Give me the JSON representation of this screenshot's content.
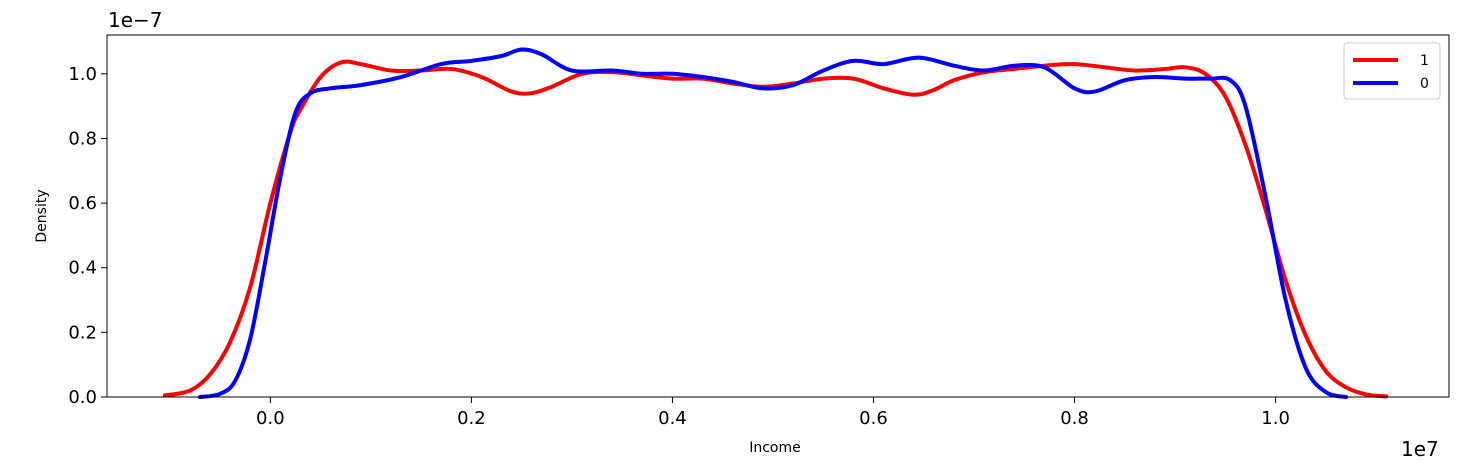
{
  "chart_data": {
    "type": "line",
    "title": "",
    "xlabel": "Income",
    "ylabel": "Density",
    "x_offset_label": "1e7",
    "y_offset_label": "1e−7",
    "xlim": [
      -0.1625,
      1.1725
    ],
    "ylim": [
      0,
      1.12
    ],
    "xticks": [
      0.0,
      0.2,
      0.4,
      0.6,
      0.8,
      1.0
    ],
    "xtick_labels": [
      "0.0",
      "0.2",
      "0.4",
      "0.6",
      "0.8",
      "1.0"
    ],
    "yticks": [
      0.0,
      0.2,
      0.4,
      0.6,
      0.8,
      1.0
    ],
    "ytick_labels": [
      "0.0",
      "0.2",
      "0.4",
      "0.6",
      "0.8",
      "1.0"
    ],
    "grid": false,
    "legend": "top-right",
    "series": [
      {
        "name": "1",
        "color": "#ff0000",
        "x": [
          -0.105,
          -0.08,
          -0.06,
          -0.04,
          -0.02,
          0.0,
          0.02,
          0.03,
          0.05,
          0.07,
          0.09,
          0.12,
          0.15,
          0.18,
          0.21,
          0.24,
          0.26,
          0.28,
          0.31,
          0.34,
          0.37,
          0.4,
          0.43,
          0.46,
          0.49,
          0.52,
          0.55,
          0.58,
          0.61,
          0.64,
          0.66,
          0.68,
          0.71,
          0.74,
          0.77,
          0.8,
          0.83,
          0.86,
          0.89,
          0.91,
          0.93,
          0.95,
          0.97,
          0.99,
          1.01,
          1.03,
          1.05,
          1.07,
          1.09,
          1.11
        ],
        "y": [
          0.005,
          0.02,
          0.07,
          0.17,
          0.34,
          0.6,
          0.82,
          0.89,
          0.99,
          1.035,
          1.03,
          1.01,
          1.01,
          1.015,
          0.99,
          0.945,
          0.94,
          0.96,
          1.0,
          1.005,
          0.995,
          0.985,
          0.985,
          0.97,
          0.96,
          0.97,
          0.985,
          0.985,
          0.955,
          0.935,
          0.95,
          0.98,
          1.005,
          1.015,
          1.025,
          1.03,
          1.02,
          1.01,
          1.015,
          1.02,
          1.0,
          0.93,
          0.78,
          0.58,
          0.36,
          0.19,
          0.08,
          0.03,
          0.008,
          0.002
        ]
      },
      {
        "name": "0",
        "color": "#0000ff",
        "x": [
          -0.07,
          -0.05,
          -0.035,
          -0.02,
          -0.005,
          0.01,
          0.025,
          0.04,
          0.06,
          0.09,
          0.13,
          0.17,
          0.2,
          0.23,
          0.25,
          0.27,
          0.3,
          0.34,
          0.37,
          0.4,
          0.43,
          0.46,
          0.49,
          0.52,
          0.55,
          0.58,
          0.61,
          0.645,
          0.68,
          0.71,
          0.74,
          0.77,
          0.8,
          0.82,
          0.85,
          0.88,
          0.91,
          0.935,
          0.955,
          0.97,
          0.99,
          1.01,
          1.03,
          1.05,
          1.07
        ],
        "y": [
          0.0,
          0.01,
          0.05,
          0.18,
          0.42,
          0.68,
          0.88,
          0.94,
          0.955,
          0.965,
          0.99,
          1.03,
          1.04,
          1.055,
          1.075,
          1.06,
          1.01,
          1.01,
          1.0,
          1.0,
          0.99,
          0.975,
          0.955,
          0.965,
          1.01,
          1.04,
          1.03,
          1.05,
          1.025,
          1.01,
          1.025,
          1.02,
          0.955,
          0.945,
          0.98,
          0.99,
          0.985,
          0.985,
          0.98,
          0.9,
          0.62,
          0.3,
          0.09,
          0.015,
          0.0
        ]
      }
    ]
  }
}
